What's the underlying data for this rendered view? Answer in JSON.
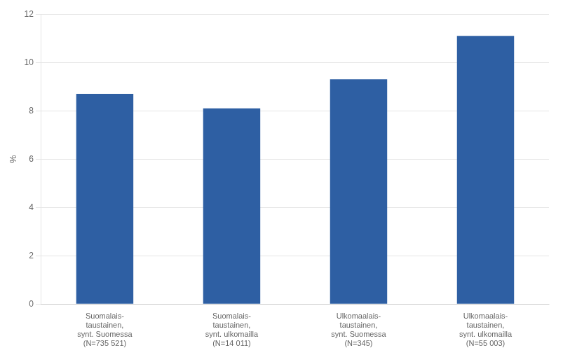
{
  "chart_data": {
    "type": "bar",
    "categories": [
      "Suomalais-\ntaustainen,\nsynt. Suomessa\n(N=735 521)",
      "Suomalais-\ntaustainen,\nsynt. ulkomailla\n(N=14 011)",
      "Ulkomaalais-\ntaustainen,\nsynt. Suomessa\n(N=345)",
      "Ulkomaalais-\ntaustainen,\nsynt. ulkomailla\n(N=55 003)"
    ],
    "values": [
      8.7,
      8.1,
      9.3,
      11.1
    ],
    "color": "#2E5FA3",
    "ylabel": "%",
    "ylim": [
      0,
      12
    ],
    "yticks": [
      0,
      2,
      4,
      6,
      8,
      10,
      12
    ],
    "grid": true
  }
}
